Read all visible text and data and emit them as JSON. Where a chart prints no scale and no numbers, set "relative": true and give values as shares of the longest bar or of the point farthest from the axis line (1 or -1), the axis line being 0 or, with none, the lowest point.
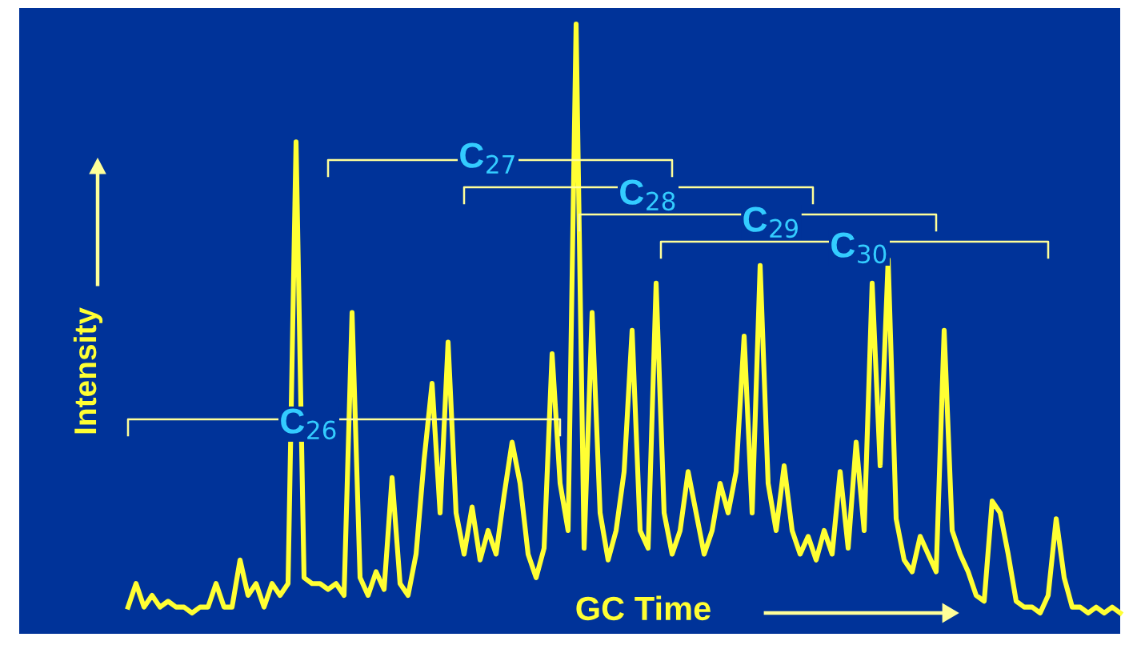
{
  "chart_data": {
    "type": "line",
    "relative": true,
    "xlabel": "GC Time",
    "ylabel": "Intensity",
    "marker": "none",
    "line_style": "solid",
    "annotations": [
      "C$_{26}$",
      "C$_{27}$",
      "C$_{28}$",
      "C$_{29}$",
      "C$_{30}$"
    ],
    "categories": [
      null,
      null,
      null,
      null,
      null,
      null,
      null,
      null,
      null,
      null,
      null,
      null,
      null,
      null,
      null,
      null,
      null,
      null,
      null,
      null,
      null,
      null,
      null,
      null,
      null,
      null,
      null,
      null,
      null,
      null,
      null,
      null,
      null,
      null,
      null,
      null,
      null,
      null,
      null,
      null,
      null,
      null,
      null,
      null,
      null,
      null,
      null,
      null,
      null,
      null,
      null,
      null,
      null,
      null,
      null,
      null,
      null,
      null,
      null,
      null,
      null,
      null,
      null,
      null,
      null,
      null,
      null,
      null,
      null,
      null,
      null,
      null,
      null,
      null,
      null,
      null,
      null,
      null,
      null,
      null,
      null,
      null,
      null,
      null,
      null,
      null,
      null,
      null,
      null,
      null,
      null,
      null,
      null,
      null,
      null,
      null,
      null,
      null,
      null,
      null,
      null,
      null,
      null,
      null,
      null,
      null,
      null,
      null,
      null,
      null,
      null,
      null,
      null,
      null,
      null,
      null,
      null,
      null,
      null,
      null,
      null,
      null,
      null,
      null,
      null
    ],
    "series": [
      {
        "color": "#ffff33",
        "values": [
          0.01,
          0.05,
          0.01,
          0.03,
          0.01,
          0.02,
          0.01,
          0.01,
          0,
          0.01,
          0.01,
          0.05,
          0.01,
          0.01,
          0.09,
          0.03,
          0.05,
          0.01,
          0.05,
          0.03,
          0.05,
          0.8,
          0.06,
          0.05,
          0.05,
          0.04,
          0.05,
          0.03,
          0.51,
          0.06,
          0.03,
          0.07,
          0.04,
          0.23,
          0.05,
          0.03,
          0.1,
          0.26,
          0.39,
          0.17,
          0.46,
          0.17,
          0.1,
          0.18,
          0.09,
          0.14,
          0.1,
          0.2,
          0.29,
          0.22,
          0.1,
          0.06,
          0.11,
          0.44,
          0.22,
          0.14,
          1,
          0.11,
          0.51,
          0.17,
          0.09,
          0.14,
          0.24,
          0.48,
          0.14,
          0.11,
          0.56,
          0.17,
          0.1,
          0.14,
          0.24,
          0.17,
          0.1,
          0.14,
          0.22,
          0.17,
          0.24,
          0.47,
          0.17,
          0.59,
          0.22,
          0.14,
          0.25,
          0.14,
          0.1,
          0.13,
          0.09,
          0.14,
          0.1,
          0.24,
          0.11,
          0.29,
          0.14,
          0.56,
          0.25,
          0.6,
          0.16,
          0.09,
          0.07,
          0.13,
          0.1,
          0.07,
          0.48,
          0.14,
          0.1,
          0.07,
          0.03,
          0.02,
          0.19,
          0.17,
          0.1,
          0.02,
          0.01,
          0.01,
          0,
          0.03,
          0.16,
          0.06,
          0.01,
          0.01,
          0,
          0.01,
          0,
          0.01,
          0
        ]
      }
    ]
  }
}
